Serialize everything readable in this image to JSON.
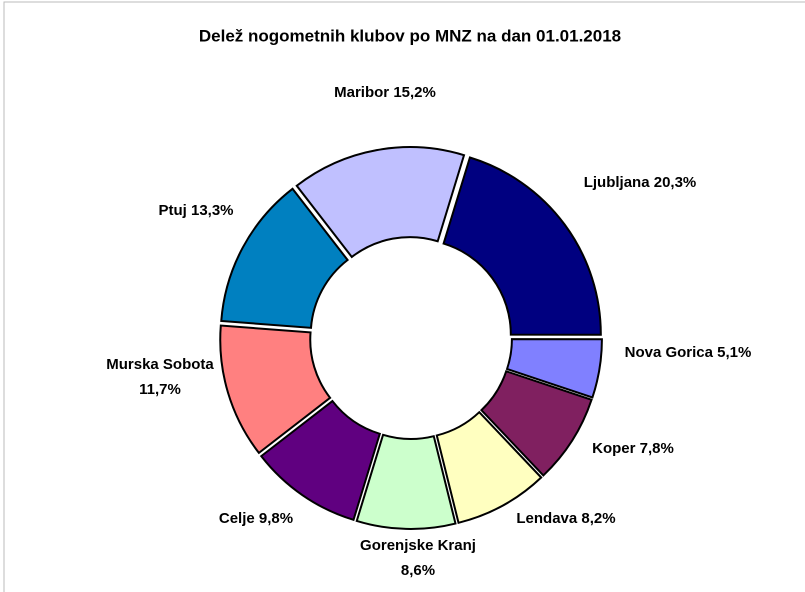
{
  "chart_data": {
    "type": "donut",
    "title": "Delež nogometnih klubov po MNZ na dan 01.01.2018",
    "categories": [
      "Ljubljana",
      "Nova Gorica",
      "Koper",
      "Lendava",
      "Gorenjske Kranj",
      "Celje",
      "Murska Sobota",
      "Ptuj",
      "Maribor"
    ],
    "values": [
      20.3,
      5.1,
      7.8,
      8.2,
      8.6,
      9.8,
      11.7,
      13.3,
      15.2
    ],
    "value_labels": [
      "20,3%",
      "5,1%",
      "7,8%",
      "8,2%",
      "8,6%",
      "9,8%",
      "11,7%",
      "13,3%",
      "15,2%"
    ],
    "colors": [
      "#000080",
      "#8080ff",
      "#802060",
      "#ffffc0",
      "#ccffcc",
      "#600080",
      "#ff8080",
      "#0080c0",
      "#c0c0ff"
    ]
  }
}
